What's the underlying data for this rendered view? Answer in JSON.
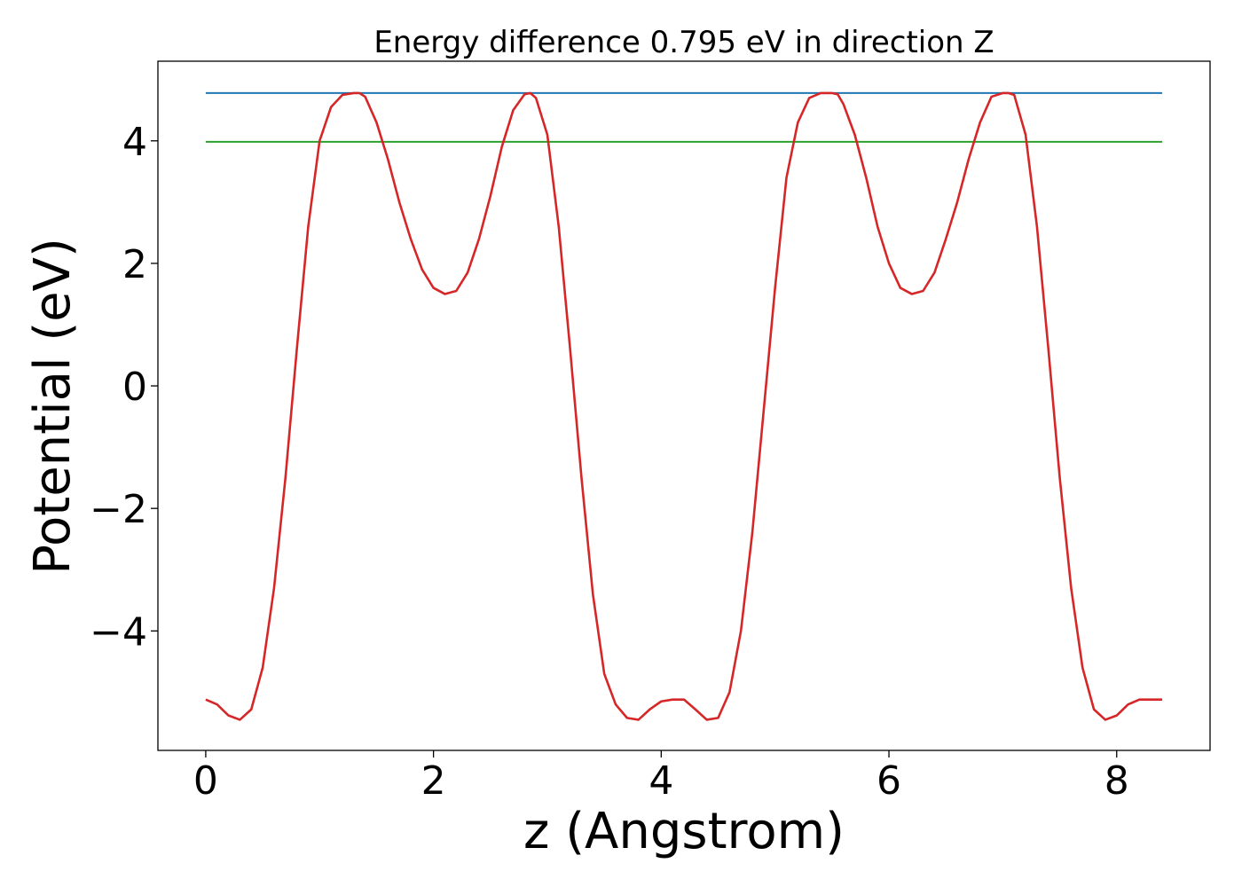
{
  "chart_data": {
    "type": "line",
    "title": "Energy difference 0.795 eV in direction Z",
    "xlabel": "z (Angstrom)",
    "ylabel": "Potential (eV)",
    "xlim": [
      -0.42,
      8.82
    ],
    "ylim": [
      -5.95,
      5.3
    ],
    "xticks": [
      0,
      2,
      4,
      6,
      8
    ],
    "xtick_labels": [
      "0",
      "2",
      "4",
      "6",
      "8"
    ],
    "yticks": [
      -4,
      -2,
      0,
      2,
      4
    ],
    "ytick_labels": [
      "−4",
      "−2",
      "0",
      "2",
      "4"
    ],
    "grid": false,
    "legend": "none",
    "series": [
      {
        "color": "#d62728",
        "x": [
          0,
          0.1,
          0.2,
          0.3,
          0.4,
          0.5,
          0.6,
          0.7,
          0.8,
          0.9,
          1.0,
          1.1,
          1.2,
          1.3,
          1.35,
          1.4,
          1.5,
          1.6,
          1.7,
          1.8,
          1.9,
          2.0,
          2.1,
          2.2,
          2.3,
          2.4,
          2.5,
          2.6,
          2.7,
          2.8,
          2.85,
          2.9,
          3.0,
          3.1,
          3.2,
          3.3,
          3.4,
          3.5,
          3.6,
          3.7,
          3.8,
          3.9,
          4.0,
          4.1,
          4.2,
          4.3,
          4.4,
          4.5,
          4.6,
          4.7,
          4.8,
          4.9,
          5.0,
          5.1,
          5.2,
          5.3,
          5.4,
          5.5,
          5.55,
          5.6,
          5.7,
          5.8,
          5.9,
          6.0,
          6.1,
          6.2,
          6.3,
          6.4,
          6.5,
          6.6,
          6.7,
          6.8,
          6.9,
          7.0,
          7.05,
          7.1,
          7.2,
          7.3,
          7.4,
          7.5,
          7.6,
          7.7,
          7.8,
          7.9,
          8.0,
          8.1,
          8.2,
          8.3,
          8.4
        ],
        "y": [
          -5.12,
          -5.2,
          -5.38,
          -5.45,
          -5.28,
          -4.6,
          -3.3,
          -1.5,
          0.6,
          2.6,
          4.0,
          4.55,
          4.75,
          4.78,
          4.78,
          4.72,
          4.3,
          3.7,
          3.0,
          2.4,
          1.9,
          1.6,
          1.5,
          1.55,
          1.85,
          2.4,
          3.1,
          3.9,
          4.5,
          4.76,
          4.78,
          4.7,
          4.1,
          2.6,
          0.6,
          -1.5,
          -3.4,
          -4.7,
          -5.2,
          -5.42,
          -5.45,
          -5.28,
          -5.15,
          -5.12,
          -5.12,
          -5.28,
          -5.45,
          -5.42,
          -5.0,
          -4.0,
          -2.4,
          -0.4,
          1.6,
          3.4,
          4.3,
          4.7,
          4.78,
          4.78,
          4.76,
          4.6,
          4.1,
          3.4,
          2.6,
          2.0,
          1.6,
          1.5,
          1.55,
          1.85,
          2.4,
          3.0,
          3.7,
          4.3,
          4.72,
          4.78,
          4.78,
          4.75,
          4.1,
          2.6,
          0.6,
          -1.5,
          -3.3,
          -4.6,
          -5.28,
          -5.45,
          -5.38,
          -5.2,
          -5.12,
          -5.12,
          -5.12
        ]
      },
      {
        "color": "#1f77b4",
        "x": [
          0,
          8.4
        ],
        "y": [
          4.78,
          4.78
        ]
      },
      {
        "color": "#2ca02c",
        "x": [
          0,
          8.4
        ],
        "y": [
          3.985,
          3.985
        ]
      }
    ]
  }
}
